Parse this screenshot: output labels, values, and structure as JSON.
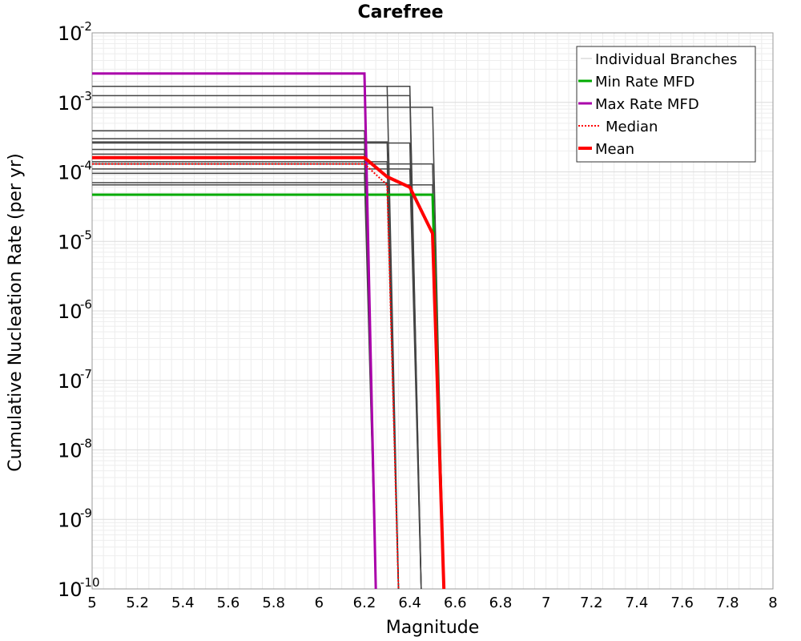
{
  "chart_data": {
    "type": "line",
    "title": "Carefree",
    "xlabel": "Magnitude",
    "ylabel": "Cumulative Nucleation Rate (per yr)",
    "x_scale": "linear",
    "y_scale": "log",
    "xlim": [
      5,
      8
    ],
    "ylim": [
      1e-10,
      0.01
    ],
    "xticks": [
      5,
      5.2,
      5.4,
      5.6,
      5.8,
      6,
      6.2,
      6.4,
      6.6,
      6.8,
      7,
      7.2,
      7.4,
      7.6,
      7.8,
      8
    ],
    "xtick_labels": [
      "5",
      "5.2",
      "5.4",
      "5.6",
      "5.8",
      "6",
      "6.2",
      "6.4",
      "6.6",
      "6.8",
      "7",
      "7.2",
      "7.4",
      "7.6",
      "7.8",
      "8"
    ],
    "yticks": [
      {
        "base": "10",
        "exp": "-2",
        "value": 0.01
      },
      {
        "base": "10",
        "exp": "-3",
        "value": 0.001
      },
      {
        "base": "10",
        "exp": "-4",
        "value": 0.0001
      },
      {
        "base": "10",
        "exp": "-5",
        "value": 1e-05
      },
      {
        "base": "10",
        "exp": "-6",
        "value": 1e-06
      },
      {
        "base": "10",
        "exp": "-7",
        "value": 1e-07
      },
      {
        "base": "10",
        "exp": "-8",
        "value": 1e-08
      },
      {
        "base": "10",
        "exp": "-9",
        "value": 1e-09
      },
      {
        "base": "10",
        "exp": "-10",
        "value": 1e-10
      }
    ],
    "grid": true,
    "legend_position": "top-right",
    "legend": [
      {
        "label": "Individual Branches",
        "color": "#c8c8c8",
        "style": "thin"
      },
      {
        "label": "Min Rate MFD",
        "color": "#00aa00",
        "style": "solid"
      },
      {
        "label": "Max Rate MFD",
        "color": "#aa00aa",
        "style": "solid"
      },
      {
        "label": "Median",
        "color": "#ff0000",
        "style": "dotted"
      },
      {
        "label": "Mean",
        "color": "#ff0000",
        "style": "thick"
      }
    ],
    "branch_color": "#444444",
    "series": [
      {
        "name": "Branch",
        "role": "branch",
        "points": [
          [
            5,
            0.00039
          ],
          [
            6.2,
            0.00039
          ],
          [
            6.25,
            1e-10
          ]
        ]
      },
      {
        "name": "Branch",
        "role": "branch",
        "points": [
          [
            5,
            0.0003
          ],
          [
            6.2,
            0.0003
          ],
          [
            6.25,
            1e-10
          ]
        ]
      },
      {
        "name": "Branch",
        "role": "branch",
        "points": [
          [
            5,
            0.00021
          ],
          [
            6.2,
            0.00021
          ],
          [
            6.25,
            1e-10
          ]
        ]
      },
      {
        "name": "Branch",
        "role": "branch",
        "points": [
          [
            5,
            0.00018
          ],
          [
            6.2,
            0.00018
          ],
          [
            6.25,
            1e-10
          ]
        ]
      },
      {
        "name": "Branch",
        "role": "branch",
        "points": [
          [
            5,
            9.5e-05
          ],
          [
            6.2,
            9.5e-05
          ],
          [
            6.25,
            1e-10
          ]
        ]
      },
      {
        "name": "Branch",
        "role": "branch",
        "points": [
          [
            5,
            0.0017
          ],
          [
            6.3,
            0.0017
          ],
          [
            6.35,
            1e-10
          ]
        ]
      },
      {
        "name": "Branch",
        "role": "branch",
        "points": [
          [
            5,
            0.00027
          ],
          [
            6.3,
            0.00027
          ],
          [
            6.35,
            1e-10
          ]
        ]
      },
      {
        "name": "Branch",
        "role": "branch",
        "points": [
          [
            5,
            0.00014
          ],
          [
            6.3,
            0.00014
          ],
          [
            6.35,
            1e-10
          ]
        ]
      },
      {
        "name": "Branch",
        "role": "branch",
        "points": [
          [
            5,
            7e-05
          ],
          [
            6.3,
            7e-05
          ],
          [
            6.35,
            1e-10
          ]
        ]
      },
      {
        "name": "Branch",
        "role": "branch",
        "points": [
          [
            5,
            0.0017
          ],
          [
            6.4,
            0.0017
          ],
          [
            6.45,
            1e-10
          ]
        ]
      },
      {
        "name": "Branch",
        "role": "branch",
        "points": [
          [
            5,
            0.00125
          ],
          [
            6.4,
            0.00125
          ],
          [
            6.45,
            1e-10
          ]
        ]
      },
      {
        "name": "Branch",
        "role": "branch",
        "points": [
          [
            5,
            0.00026
          ],
          [
            6.4,
            0.00026
          ],
          [
            6.45,
            1e-10
          ]
        ]
      },
      {
        "name": "Branch",
        "role": "branch",
        "points": [
          [
            5,
            0.00011
          ],
          [
            6.4,
            0.00011
          ],
          [
            6.45,
            1e-10
          ]
        ]
      },
      {
        "name": "Branch",
        "role": "branch",
        "points": [
          [
            5,
            0.00085
          ],
          [
            6.5,
            0.00085
          ],
          [
            6.55,
            1e-10
          ]
        ]
      },
      {
        "name": "Branch",
        "role": "branch",
        "points": [
          [
            5,
            0.00013
          ],
          [
            6.5,
            0.00013
          ],
          [
            6.55,
            1e-10
          ]
        ]
      },
      {
        "name": "Branch",
        "role": "branch",
        "points": [
          [
            5,
            6.5e-05
          ],
          [
            6.5,
            6.5e-05
          ],
          [
            6.55,
            1e-10
          ]
        ]
      },
      {
        "name": "Min Rate MFD",
        "role": "min",
        "color": "#00aa00",
        "width": 3,
        "points": [
          [
            5,
            4.7e-05
          ],
          [
            6.5,
            4.7e-05
          ],
          [
            6.55,
            1e-10
          ]
        ]
      },
      {
        "name": "Max Rate MFD",
        "role": "max",
        "color": "#aa00aa",
        "width": 3,
        "points": [
          [
            5,
            0.0026
          ],
          [
            6.2,
            0.0026
          ],
          [
            6.25,
            1e-10
          ]
        ]
      },
      {
        "name": "Median",
        "role": "median",
        "color": "#ff0000",
        "width": 2,
        "dash": "2,2",
        "points": [
          [
            5,
            0.00013
          ],
          [
            6.2,
            0.00013
          ],
          [
            6.3,
            6.5e-05
          ],
          [
            6.35,
            1e-10
          ]
        ]
      },
      {
        "name": "Mean",
        "role": "mean",
        "color": "#ff0000",
        "width": 4,
        "points": [
          [
            5,
            0.00016
          ],
          [
            6.2,
            0.00016
          ],
          [
            6.3,
            8.5e-05
          ],
          [
            6.4,
            6e-05
          ],
          [
            6.5,
            1.3e-05
          ],
          [
            6.55,
            1e-10
          ]
        ]
      }
    ]
  }
}
